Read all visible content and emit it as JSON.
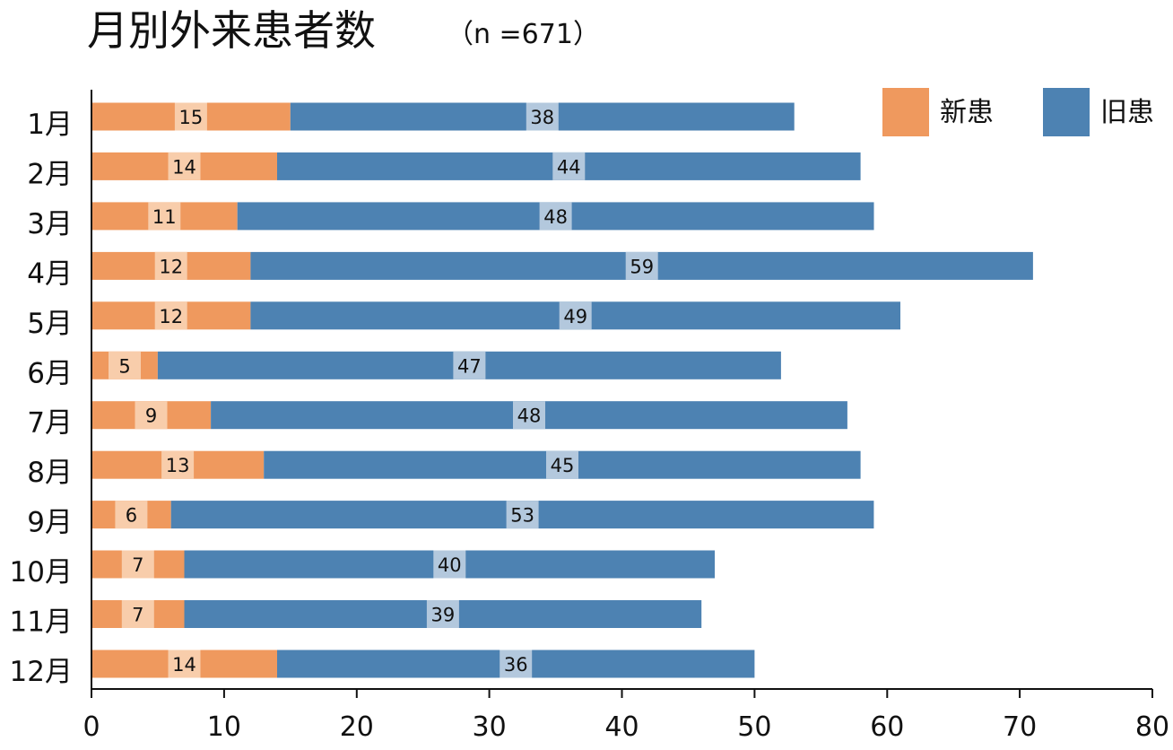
{
  "chart_data": {
    "type": "bar",
    "orientation": "horizontal",
    "stacked": true,
    "title": "月別外来患者数",
    "subtitle": "（n =671）",
    "categories": [
      "1月",
      "2月",
      "3月",
      "4月",
      "5月",
      "6月",
      "7月",
      "8月",
      "9月",
      "10月",
      "11月",
      "12月"
    ],
    "series": [
      {
        "name": "新患",
        "values": [
          15,
          14,
          11,
          12,
          12,
          5,
          9,
          13,
          6,
          7,
          7,
          14
        ],
        "color": "#EF995E",
        "label_background": "#F8CDAB"
      },
      {
        "name": "旧患",
        "values": [
          38,
          44,
          48,
          59,
          49,
          47,
          48,
          45,
          53,
          40,
          39,
          36
        ],
        "color": "#4D82B2",
        "label_background": "#B3C8DD"
      }
    ],
    "xlim": [
      0,
      80
    ],
    "xticks": [
      0,
      10,
      20,
      30,
      40,
      50,
      60,
      70,
      80
    ],
    "xlabel": "",
    "ylabel": "",
    "grid": false,
    "data_labels": true,
    "legend_position": "top-right"
  }
}
